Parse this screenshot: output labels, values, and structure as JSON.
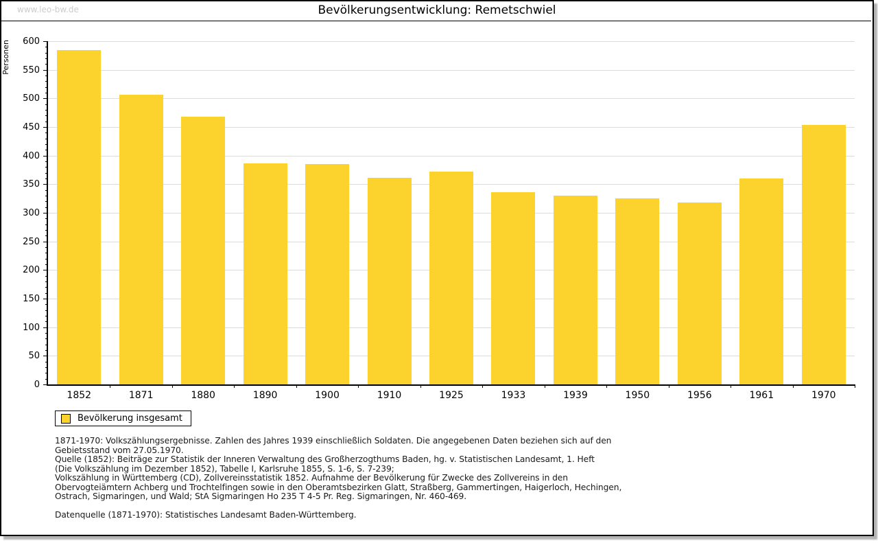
{
  "page": {
    "watermark": "www.leo-bw.de",
    "title": "Bevölkerungsentwicklung: Remetschwiel"
  },
  "chart_data": {
    "type": "bar",
    "title": "Bevölkerungsentwicklung: Remetschwiel",
    "ylabel": "Personen",
    "xlabel": "",
    "categories": [
      "1852",
      "1871",
      "1880",
      "1890",
      "1900",
      "1910",
      "1925",
      "1933",
      "1939",
      "1950",
      "1956",
      "1961",
      "1970"
    ],
    "values": [
      585,
      506,
      468,
      387,
      385,
      361,
      372,
      336,
      330,
      325,
      318,
      360,
      454
    ],
    "series_label": "Bevölkerung insgesamt",
    "ylim": [
      0,
      600
    ],
    "ytick_major_step": 50,
    "ytick_minor_step": 10,
    "grid": true,
    "legend_position": "bottom-left",
    "bar_color": "#FCD32C"
  },
  "legend": {
    "label": "Bevölkerung insgesamt",
    "swatch_color": "#FCD32C"
  },
  "footnotes": {
    "lines": [
      "1871-1970: Volkszählungsergebnisse. Zahlen des Jahres 1939 einschließlich Soldaten. Die angegebenen Daten beziehen sich auf den",
      "Gebietsstand vom 27.05.1970.",
      "Quelle (1852): Beiträge zur Statistik der Inneren Verwaltung des Großherzogthums Baden, hg. v. Statistischen Landesamt, 1. Heft",
      "(Die Volkszählung im Dezember 1852), Tabelle I, Karlsruhe 1855, S. 1-6, S. 7-239;",
      "Volkszählung in Württemberg (CD), Zollvereinsstatistik 1852. Aufnahme der Bevölkerung für Zwecke des Zollvereins in den",
      "Obervogteiämtern Achberg und Trochtelfingen sowie in den Oberamtsbezirken Glatt, Straßberg, Gammertingen, Haigerloch, Hechingen,",
      "Ostrach, Sigmaringen, und Wald; StA Sigmaringen Ho 235 T 4-5 Pr. Reg. Sigmaringen, Nr. 460-469."
    ],
    "datasource": "Datenquelle (1871-1970): Statistisches Landesamt Baden-Württemberg."
  },
  "colors": {
    "bar": "#FCD32C",
    "grid": "#DCDCDC",
    "axis": "#000000",
    "watermark": "#CCCCCC"
  }
}
